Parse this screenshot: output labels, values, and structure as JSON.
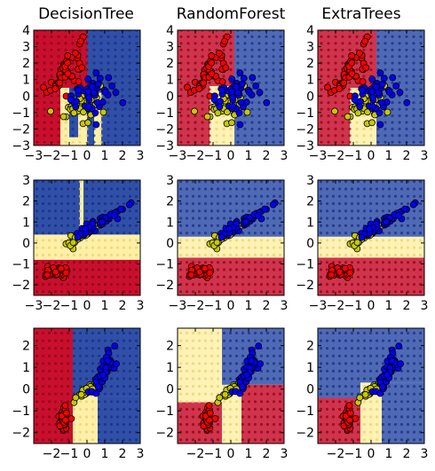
{
  "figure": {
    "titles": [
      "DecisionTree",
      "RandomForest",
      "ExtraTrees"
    ]
  },
  "colors": {
    "red": "#c8102e",
    "yellow": "#fff0a8",
    "blue": "#3050a8",
    "class_fill": [
      "#ff0000",
      "#c8c800",
      "#0000ff"
    ]
  },
  "chart_data": [
    {
      "type": "scatter",
      "row": 0,
      "col": 0,
      "title": "DecisionTree",
      "xlim": [
        -3,
        3
      ],
      "ylim": [
        -3,
        4
      ],
      "xticks": [
        -3,
        -2,
        -1,
        0,
        1,
        2,
        3
      ],
      "yticks": [
        -3,
        -2,
        -1,
        0,
        1,
        2,
        3,
        4
      ],
      "xtick_labels": [
        "−3",
        "−2",
        "−1",
        "0",
        "1",
        "2",
        "3"
      ],
      "ytick_labels": [
        "−3",
        "−2",
        "−1",
        "0",
        "1",
        "2",
        "3",
        "4"
      ],
      "regions": [
        {
          "x": [
            -3,
            -1.5
          ],
          "y": [
            -3,
            4
          ],
          "class": 0
        },
        {
          "x": [
            -1.5,
            0
          ],
          "y": [
            0.5,
            4
          ],
          "class": 0
        },
        {
          "x": [
            0,
            3
          ],
          "y": [
            -3,
            4
          ],
          "class": 2
        },
        {
          "x": [
            -1.5,
            0
          ],
          "y": [
            -3,
            0.5
          ],
          "class": 1
        },
        {
          "x": [
            -1,
            -0.5
          ],
          "y": [
            -2.5,
            0.5
          ],
          "class": 2
        },
        {
          "x": [
            0.4,
            0.8
          ],
          "y": [
            -3,
            0.2
          ],
          "class": 1
        }
      ],
      "clusters": [
        {
          "class": 0,
          "center": [
            -1.2,
            1.6
          ],
          "spread": [
            0.5,
            0.8
          ],
          "corr": 0.7,
          "n": 45
        },
        {
          "class": 1,
          "center": [
            -0.3,
            -0.5
          ],
          "spread": [
            0.5,
            0.6
          ],
          "corr": 0.3,
          "n": 40
        },
        {
          "class": 2,
          "center": [
            0.2,
            0.1
          ],
          "spread": [
            0.7,
            0.6
          ],
          "corr": 0,
          "n": 45
        }
      ],
      "grid_step": 0.4
    },
    {
      "type": "scatter",
      "row": 0,
      "col": 1,
      "title": "RandomForest",
      "xlim": [
        -3,
        3
      ],
      "ylim": [
        -3,
        4
      ],
      "xticks": [
        -3,
        -2,
        -1,
        0,
        1,
        2,
        3
      ],
      "yticks": [
        -3,
        -2,
        -1,
        0,
        1,
        2,
        3,
        4
      ],
      "xtick_labels": [
        "−3",
        "−2",
        "−1",
        "0",
        "1",
        "2",
        "3"
      ],
      "ytick_labels": [
        "−3",
        "−2",
        "−1",
        "0",
        "1",
        "2",
        "3",
        "4"
      ],
      "regions": [
        {
          "x": [
            -3,
            -1.2
          ],
          "y": [
            -3,
            4
          ],
          "class": 0
        },
        {
          "x": [
            -1.2,
            0.2
          ],
          "y": [
            0.6,
            4
          ],
          "class": 0
        },
        {
          "x": [
            0.2,
            3
          ],
          "y": [
            -3,
            4
          ],
          "class": 2
        },
        {
          "x": [
            -1.2,
            0.2
          ],
          "y": [
            -3,
            0.6
          ],
          "class": 1
        }
      ],
      "clusters": [
        {
          "class": 0,
          "center": [
            -1.2,
            1.6
          ],
          "spread": [
            0.5,
            0.8
          ],
          "corr": 0.7,
          "n": 45
        },
        {
          "class": 1,
          "center": [
            -0.3,
            -0.5
          ],
          "spread": [
            0.5,
            0.6
          ],
          "corr": 0.3,
          "n": 40
        },
        {
          "class": 2,
          "center": [
            0.2,
            0.1
          ],
          "spread": [
            0.7,
            0.6
          ],
          "corr": 0,
          "n": 45
        }
      ],
      "grid_step": 0.4
    },
    {
      "type": "scatter",
      "row": 0,
      "col": 2,
      "title": "ExtraTrees",
      "xlim": [
        -3,
        3
      ],
      "ylim": [
        -3,
        4
      ],
      "xticks": [
        -3,
        -2,
        -1,
        0,
        1,
        2,
        3
      ],
      "yticks": [
        -3,
        -2,
        -1,
        0,
        1,
        2,
        3,
        4
      ],
      "xtick_labels": [
        "−3",
        "−2",
        "−1",
        "0",
        "1",
        "2",
        "3"
      ],
      "ytick_labels": [
        "−3",
        "−2",
        "−1",
        "0",
        "1",
        "2",
        "3",
        "4"
      ],
      "regions": [
        {
          "x": [
            -3,
            -1.2
          ],
          "y": [
            -3,
            4
          ],
          "class": 0
        },
        {
          "x": [
            -1.2,
            0.3
          ],
          "y": [
            0.5,
            4
          ],
          "class": 0
        },
        {
          "x": [
            0.3,
            3
          ],
          "y": [
            -3,
            4
          ],
          "class": 2
        },
        {
          "x": [
            -1.2,
            0.3
          ],
          "y": [
            -3,
            0.5
          ],
          "class": 1
        }
      ],
      "clusters": [
        {
          "class": 0,
          "center": [
            -1.2,
            1.6
          ],
          "spread": [
            0.5,
            0.8
          ],
          "corr": 0.7,
          "n": 45
        },
        {
          "class": 1,
          "center": [
            -0.3,
            -0.5
          ],
          "spread": [
            0.5,
            0.6
          ],
          "corr": 0.3,
          "n": 40
        },
        {
          "class": 2,
          "center": [
            0.2,
            0.1
          ],
          "spread": [
            0.7,
            0.6
          ],
          "corr": 0,
          "n": 45
        }
      ],
      "grid_step": 0.4
    },
    {
      "type": "scatter",
      "row": 1,
      "col": 0,
      "title": "",
      "xlim": [
        -3,
        3
      ],
      "ylim": [
        -2.5,
        3
      ],
      "xticks": [
        -3,
        -2,
        -1,
        0,
        1,
        2,
        3
      ],
      "yticks": [
        -2,
        -1,
        0,
        1,
        2,
        3
      ],
      "xtick_labels": [
        "−3",
        "−2",
        "−1",
        "0",
        "1",
        "2",
        "3"
      ],
      "ytick_labels": [
        "−2",
        "−1",
        "0",
        "1",
        "2",
        "3"
      ],
      "regions": [
        {
          "x": [
            -3,
            3
          ],
          "y": [
            -2.5,
            -0.8
          ],
          "class": 0
        },
        {
          "x": [
            -3,
            3
          ],
          "y": [
            -0.8,
            0.4
          ],
          "class": 1
        },
        {
          "x": [
            -3,
            3
          ],
          "y": [
            0.4,
            3
          ],
          "class": 2
        },
        {
          "x": [
            -0.4,
            -0.2
          ],
          "y": [
            0.4,
            3
          ],
          "class": 1
        }
      ],
      "clusters": [
        {
          "class": 0,
          "center": [
            -1.7,
            -1.35
          ],
          "spread": [
            0.3,
            0.12
          ],
          "corr": 0,
          "n": 40
        },
        {
          "class": 1,
          "center": [
            -0.4,
            0.3
          ],
          "spread": [
            0.45,
            0.25
          ],
          "corr": 0.9,
          "n": 40
        },
        {
          "class": 2,
          "center": [
            0.8,
            1.0
          ],
          "spread": [
            0.8,
            0.4
          ],
          "corr": 0.95,
          "n": 50
        }
      ],
      "grid_step": 0.35
    },
    {
      "type": "scatter",
      "row": 1,
      "col": 1,
      "title": "",
      "xlim": [
        -3,
        3
      ],
      "ylim": [
        -2.5,
        3
      ],
      "xticks": [
        -3,
        -2,
        -1,
        0,
        1,
        2,
        3
      ],
      "yticks": [
        -2,
        -1,
        0,
        1,
        2,
        3
      ],
      "xtick_labels": [
        "−3",
        "−2",
        "−1",
        "0",
        "1",
        "2",
        "3"
      ],
      "ytick_labels": [
        "−2",
        "−1",
        "0",
        "1",
        "2",
        "3"
      ],
      "regions": [
        {
          "x": [
            -3,
            3
          ],
          "y": [
            -2.5,
            -0.7
          ],
          "class": 0
        },
        {
          "x": [
            -3,
            3
          ],
          "y": [
            -0.7,
            0.3
          ],
          "class": 1
        },
        {
          "x": [
            -3,
            3
          ],
          "y": [
            0.3,
            3
          ],
          "class": 2
        }
      ],
      "clusters": [
        {
          "class": 0,
          "center": [
            -1.7,
            -1.35
          ],
          "spread": [
            0.3,
            0.12
          ],
          "corr": 0,
          "n": 40
        },
        {
          "class": 1,
          "center": [
            -0.4,
            0.3
          ],
          "spread": [
            0.45,
            0.25
          ],
          "corr": 0.9,
          "n": 40
        },
        {
          "class": 2,
          "center": [
            0.8,
            1.0
          ],
          "spread": [
            0.8,
            0.4
          ],
          "corr": 0.95,
          "n": 50
        }
      ],
      "grid_step": 0.35
    },
    {
      "type": "scatter",
      "row": 1,
      "col": 2,
      "title": "",
      "xlim": [
        -3,
        3
      ],
      "ylim": [
        -2.5,
        3
      ],
      "xticks": [
        -3,
        -2,
        -1,
        0,
        1,
        2,
        3
      ],
      "yticks": [
        -2,
        -1,
        0,
        1,
        2,
        3
      ],
      "xtick_labels": [
        "−3",
        "−2",
        "−1",
        "0",
        "1",
        "2",
        "3"
      ],
      "ytick_labels": [
        "−2",
        "−1",
        "0",
        "1",
        "2",
        "3"
      ],
      "regions": [
        {
          "x": [
            -3,
            3
          ],
          "y": [
            -2.5,
            -0.7
          ],
          "class": 0
        },
        {
          "x": [
            -3,
            3
          ],
          "y": [
            -0.7,
            0.3
          ],
          "class": 1
        },
        {
          "x": [
            -3,
            3
          ],
          "y": [
            0.3,
            3
          ],
          "class": 2
        }
      ],
      "clusters": [
        {
          "class": 0,
          "center": [
            -1.7,
            -1.35
          ],
          "spread": [
            0.3,
            0.12
          ],
          "corr": 0,
          "n": 40
        },
        {
          "class": 1,
          "center": [
            -0.4,
            0.3
          ],
          "spread": [
            0.45,
            0.25
          ],
          "corr": 0.9,
          "n": 40
        },
        {
          "class": 2,
          "center": [
            0.8,
            1.0
          ],
          "spread": [
            0.8,
            0.4
          ],
          "corr": 0.95,
          "n": 50
        }
      ],
      "grid_step": 0.35
    },
    {
      "type": "scatter",
      "row": 2,
      "col": 0,
      "title": "",
      "xlim": [
        -3,
        3
      ],
      "ylim": [
        -2.5,
        2.8
      ],
      "xticks": [
        -2,
        -1,
        0,
        1,
        2,
        3
      ],
      "yticks": [
        -2,
        -1,
        0,
        1,
        2
      ],
      "xtick_labels": [
        "−2",
        "−1",
        "0",
        "1",
        "2",
        "3"
      ],
      "ytick_labels": [
        "−2",
        "−1",
        "0",
        "1",
        "2"
      ],
      "regions": [
        {
          "x": [
            -3,
            -0.8
          ],
          "y": [
            -2.5,
            2.8
          ],
          "class": 0
        },
        {
          "x": [
            -0.8,
            0.6
          ],
          "y": [
            -2.5,
            -0.3
          ],
          "class": 1
        },
        {
          "x": [
            -0.8,
            3
          ],
          "y": [
            -0.3,
            2.8
          ],
          "class": 2
        },
        {
          "x": [
            0.6,
            3
          ],
          "y": [
            -2.5,
            -0.3
          ],
          "class": 2
        }
      ],
      "clusters": [
        {
          "class": 0,
          "center": [
            -1.3,
            -1.35
          ],
          "spread": [
            0.12,
            0.3
          ],
          "corr": 0,
          "n": 30
        },
        {
          "class": 1,
          "center": [
            0.1,
            0.0
          ],
          "spread": [
            0.3,
            0.2
          ],
          "corr": 0.9,
          "n": 35
        },
        {
          "class": 2,
          "center": [
            1.1,
            1.0
          ],
          "spread": [
            0.35,
            0.55
          ],
          "corr": 0.85,
          "n": 45
        }
      ],
      "grid_step": 0.35
    },
    {
      "type": "scatter",
      "row": 2,
      "col": 1,
      "title": "",
      "xlim": [
        -3,
        3
      ],
      "ylim": [
        -2.5,
        2.8
      ],
      "xticks": [
        -2,
        -1,
        0,
        1,
        2,
        3
      ],
      "yticks": [
        -2,
        -1,
        0,
        1,
        2
      ],
      "xtick_labels": [
        "−2",
        "−1",
        "0",
        "1",
        "2",
        "3"
      ],
      "ytick_labels": [
        "−2",
        "−1",
        "0",
        "1",
        "2"
      ],
      "regions": [
        {
          "x": [
            -3,
            -0.5
          ],
          "y": [
            -2.5,
            -0.6
          ],
          "class": 0
        },
        {
          "x": [
            -3,
            -0.5
          ],
          "y": [
            -0.6,
            2.8
          ],
          "class": 1
        },
        {
          "x": [
            -0.5,
            0.6
          ],
          "y": [
            -2.5,
            0.2
          ],
          "class": 1
        },
        {
          "x": [
            -0.5,
            3
          ],
          "y": [
            0.2,
            2.8
          ],
          "class": 2
        },
        {
          "x": [
            0.6,
            3
          ],
          "y": [
            -2.5,
            0.2
          ],
          "class": 0
        }
      ],
      "clusters": [
        {
          "class": 0,
          "center": [
            -1.3,
            -1.35
          ],
          "spread": [
            0.12,
            0.3
          ],
          "corr": 0,
          "n": 30
        },
        {
          "class": 1,
          "center": [
            0.1,
            0.0
          ],
          "spread": [
            0.3,
            0.2
          ],
          "corr": 0.9,
          "n": 35
        },
        {
          "class": 2,
          "center": [
            1.1,
            1.0
          ],
          "spread": [
            0.35,
            0.55
          ],
          "corr": 0.85,
          "n": 45
        }
      ],
      "grid_step": 0.35
    },
    {
      "type": "scatter",
      "row": 2,
      "col": 2,
      "title": "",
      "xlim": [
        -3,
        3
      ],
      "ylim": [
        -2.5,
        2.8
      ],
      "xticks": [
        -2,
        -1,
        0,
        1,
        2,
        3
      ],
      "yticks": [
        -2,
        -1,
        0,
        1,
        2
      ],
      "xtick_labels": [
        "−2",
        "−1",
        "0",
        "1",
        "2",
        "3"
      ],
      "ytick_labels": [
        "−2",
        "−1",
        "0",
        "1",
        "2"
      ],
      "regions": [
        {
          "x": [
            -3,
            -0.6
          ],
          "y": [
            -2.5,
            -0.4
          ],
          "class": 0
        },
        {
          "x": [
            -3,
            -0.6
          ],
          "y": [
            -0.4,
            2.8
          ],
          "class": 2
        },
        {
          "x": [
            -0.6,
            0.6
          ],
          "y": [
            -2.5,
            0.3
          ],
          "class": 1
        },
        {
          "x": [
            -0.6,
            3
          ],
          "y": [
            0.3,
            2.8
          ],
          "class": 2
        },
        {
          "x": [
            0.6,
            3
          ],
          "y": [
            -2.5,
            0.3
          ],
          "class": 2
        }
      ],
      "clusters": [
        {
          "class": 0,
          "center": [
            -1.3,
            -1.35
          ],
          "spread": [
            0.12,
            0.3
          ],
          "corr": 0,
          "n": 30
        },
        {
          "class": 1,
          "center": [
            0.1,
            0.0
          ],
          "spread": [
            0.3,
            0.2
          ],
          "corr": 0.9,
          "n": 35
        },
        {
          "class": 2,
          "center": [
            1.1,
            1.0
          ],
          "spread": [
            0.35,
            0.55
          ],
          "corr": 0.85,
          "n": 45
        }
      ],
      "grid_step": 0.35
    }
  ]
}
